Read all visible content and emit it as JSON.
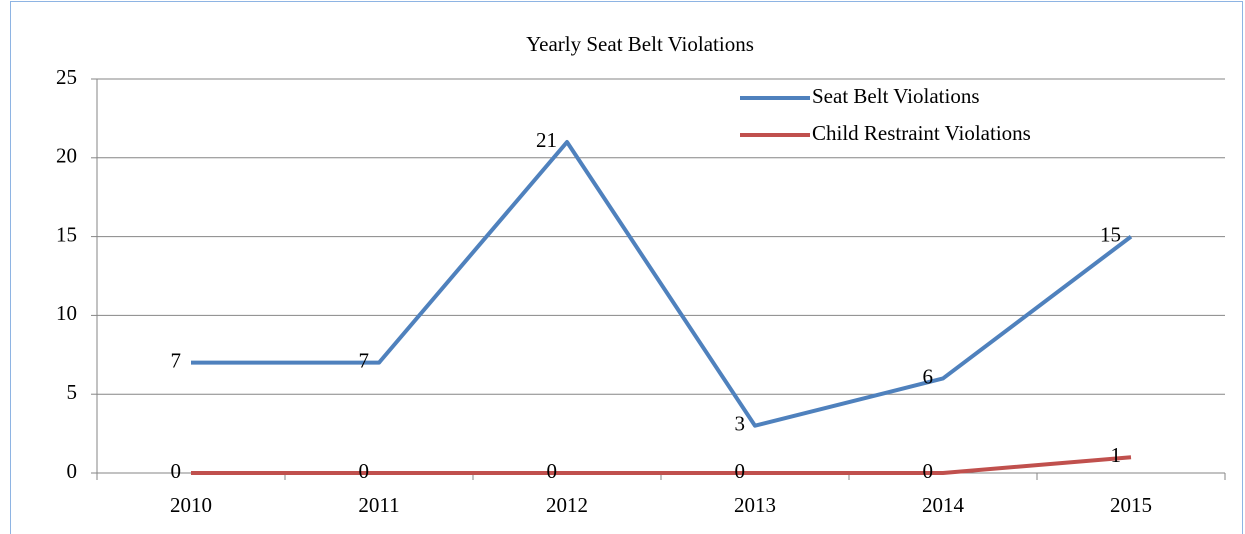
{
  "chart_data": {
    "type": "line",
    "title": "Yearly Seat Belt Violations",
    "categories": [
      "2010",
      "2011",
      "2012",
      "2013",
      "2014",
      "2015"
    ],
    "series": [
      {
        "name": "Seat Belt Violations",
        "color": "#4f81bd",
        "values": [
          7,
          7,
          21,
          3,
          6,
          15
        ]
      },
      {
        "name": "Child Restraint Violations",
        "color": "#c0504d",
        "values": [
          0,
          0,
          0,
          0,
          0,
          1
        ]
      }
    ],
    "ylim": [
      0,
      25
    ],
    "yticks": [
      0,
      5,
      10,
      15,
      20,
      25
    ],
    "grid": true,
    "legend": "top-right",
    "data_labels": true
  }
}
